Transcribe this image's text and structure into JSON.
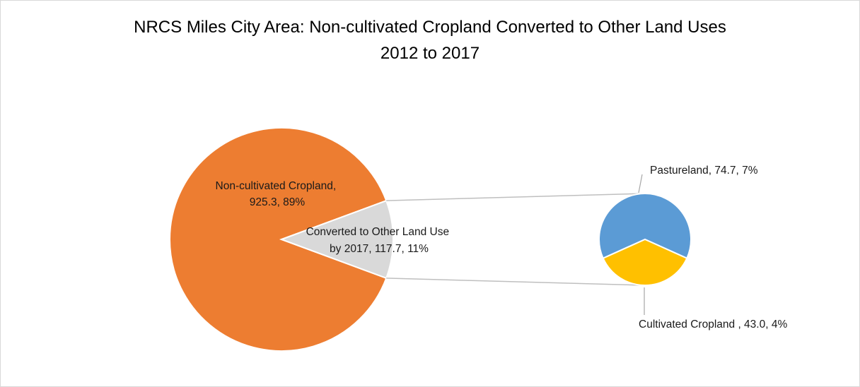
{
  "chart_data": {
    "type": "pie",
    "subtype": "pie-of-pie",
    "title": "NRCS Miles City Area: Non-cultivated Cropland Converted to Other Land Uses",
    "subtitle": "2012 to 2017",
    "main_pie": {
      "slices": [
        {
          "label": "Non-cultivated Cropland,",
          "value_text": "925.3, 89%",
          "value": 925.3,
          "percent": 89,
          "color": "#ed7d31"
        },
        {
          "label": "Converted to Other Land Use",
          "value_text": "by 2017, 117.7, 11%",
          "value": 117.7,
          "percent": 11,
          "color": "#d9d9d9"
        }
      ]
    },
    "secondary_pie": {
      "slices": [
        {
          "label": "Pastureland, 74.7, 7%",
          "value": 74.7,
          "percent": 7,
          "color": "#5b9bd5"
        },
        {
          "label": "Cultivated Cropland , 43.0, 4%",
          "value": 43.0,
          "percent": 4,
          "color": "#ffc000"
        }
      ]
    }
  }
}
